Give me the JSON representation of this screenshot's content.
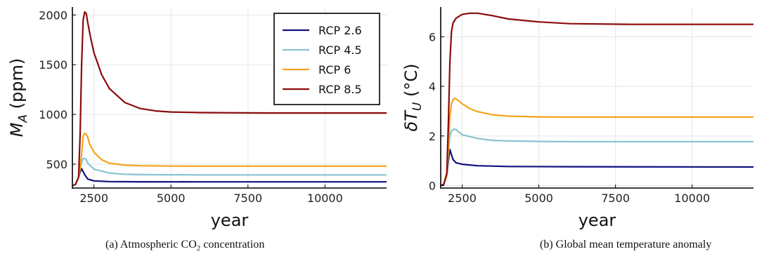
{
  "chart_data": [
    {
      "id": "a",
      "type": "line",
      "xlabel": "year",
      "ylabel_main": "M",
      "ylabel_sub": "A",
      "ylabel_rest": " (ppm)",
      "xlim": [
        1800,
        12000
      ],
      "ylim": [
        260,
        2080
      ],
      "xticks": [
        2500,
        5000,
        7500,
        10000
      ],
      "xtick_labels": [
        "2500",
        "5000",
        "7500",
        "10000"
      ],
      "yticks": [
        500,
        1000,
        1500,
        2000
      ],
      "ytick_labels": [
        "500",
        "1000",
        "1500",
        "2000"
      ],
      "grid": true,
      "legend": "top-right",
      "series": [
        {
          "name": "RCP 2.6",
          "color": "#101080",
          "x": [
            1800,
            1900,
            2000,
            2050,
            2100,
            2150,
            2200,
            2300,
            2500,
            3000,
            4000,
            6000,
            12000
          ],
          "y": [
            285,
            295,
            370,
            420,
            455,
            425,
            395,
            350,
            332,
            325,
            323,
            322,
            322
          ]
        },
        {
          "name": "RCP 4.5",
          "color": "#88c4d0",
          "x": [
            1800,
            1900,
            2000,
            2050,
            2100,
            2150,
            2200,
            2250,
            2300,
            2500,
            3000,
            3500,
            4000,
            5000,
            6000,
            12000
          ],
          "y": [
            285,
            295,
            370,
            450,
            520,
            555,
            560,
            545,
            510,
            450,
            410,
            398,
            395,
            393,
            392,
            392
          ]
        },
        {
          "name": "RCP 6",
          "color": "#f5a31a",
          "x": [
            1800,
            1900,
            2000,
            2050,
            2100,
            2150,
            2200,
            2250,
            2300,
            2350,
            2500,
            2750,
            3000,
            3500,
            4000,
            5000,
            6000,
            12000
          ],
          "y": [
            285,
            295,
            370,
            460,
            600,
            780,
            810,
            800,
            770,
            710,
            620,
            545,
            510,
            490,
            484,
            481,
            480,
            480
          ]
        },
        {
          "name": "RCP 8.5",
          "color": "#8b0a0a",
          "x": [
            1800,
            1900,
            2000,
            2050,
            2100,
            2150,
            2200,
            2250,
            2300,
            2400,
            2500,
            2750,
            3000,
            3500,
            4000,
            4500,
            5000,
            6000,
            8000,
            12000
          ],
          "y": [
            285,
            295,
            370,
            800,
            1500,
            1950,
            2030,
            2015,
            1920,
            1760,
            1620,
            1400,
            1260,
            1120,
            1060,
            1035,
            1025,
            1018,
            1015,
            1015
          ]
        }
      ]
    },
    {
      "id": "b",
      "type": "line",
      "xlabel": "year",
      "ylabel_main": "δT",
      "ylabel_sub": "U",
      "ylabel_rest": " (°C)",
      "xlim": [
        1800,
        12000
      ],
      "ylim": [
        -0.1,
        7.2
      ],
      "xticks": [
        2500,
        5000,
        7500,
        10000
      ],
      "xtick_labels": [
        "2500",
        "5000",
        "7500",
        "10000"
      ],
      "yticks": [
        0,
        2,
        4,
        6
      ],
      "ytick_labels": [
        "0",
        "2",
        "4",
        "6"
      ],
      "grid": true,
      "legend": "none",
      "series": [
        {
          "name": "RCP 2.6",
          "color": "#101080",
          "x": [
            1800,
            1900,
            2000,
            2050,
            2100,
            2150,
            2200,
            2300,
            2500,
            3000,
            4000,
            6000,
            12000
          ],
          "y": [
            0.0,
            0.05,
            0.4,
            1.0,
            1.45,
            1.25,
            1.05,
            0.92,
            0.86,
            0.8,
            0.77,
            0.76,
            0.75
          ]
        },
        {
          "name": "RCP 4.5",
          "color": "#88c4d0",
          "x": [
            1800,
            1900,
            2000,
            2050,
            2100,
            2150,
            2200,
            2250,
            2300,
            2400,
            2500,
            3000,
            3500,
            4000,
            5000,
            6000,
            12000
          ],
          "y": [
            0.0,
            0.05,
            0.4,
            1.3,
            2.0,
            2.2,
            2.25,
            2.28,
            2.25,
            2.15,
            2.05,
            1.9,
            1.82,
            1.8,
            1.78,
            1.77,
            1.77
          ]
        },
        {
          "name": "RCP 6",
          "color": "#f5a31a",
          "x": [
            1800,
            1900,
            2000,
            2050,
            2100,
            2150,
            2200,
            2250,
            2300,
            2400,
            2500,
            2750,
            3000,
            3500,
            4000,
            5000,
            6000,
            12000
          ],
          "y": [
            0.0,
            0.05,
            0.4,
            1.5,
            2.8,
            3.3,
            3.45,
            3.52,
            3.5,
            3.4,
            3.3,
            3.1,
            2.98,
            2.85,
            2.8,
            2.77,
            2.76,
            2.76
          ]
        },
        {
          "name": "RCP 8.5",
          "color": "#8b0a0a",
          "x": [
            1800,
            1900,
            2000,
            2050,
            2100,
            2150,
            2200,
            2300,
            2500,
            2750,
            3000,
            3500,
            4000,
            5000,
            6000,
            8000,
            12000
          ],
          "y": [
            0.0,
            0.05,
            0.5,
            2.5,
            5.0,
            6.2,
            6.55,
            6.75,
            6.9,
            6.95,
            6.95,
            6.85,
            6.72,
            6.6,
            6.53,
            6.5,
            6.5
          ]
        }
      ]
    }
  ],
  "captions": {
    "a_prefix": "(a) Atmospheric CO",
    "a_sub": "2",
    "a_suffix": " concentration",
    "b": "(b) Global mean temperature anomaly"
  }
}
